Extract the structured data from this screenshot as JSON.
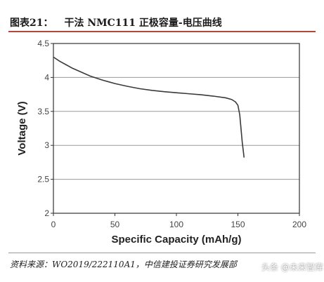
{
  "figure": {
    "label": "图表21：",
    "title": "干法 NMC111 正极容量-电压曲线",
    "source": "资料来源：WO2019/222110A1，中信建投证券研究发展部",
    "watermark": "头条 @未来智库"
  },
  "chart_data": {
    "type": "line",
    "xlabel": "Specific Capacity (mAh/g)",
    "ylabel": "Voltage (V)",
    "xlim": [
      0,
      200
    ],
    "ylim": [
      2,
      4.5
    ],
    "xticks": [
      0,
      50,
      100,
      150,
      200
    ],
    "yticks": [
      2,
      2.5,
      3,
      3.5,
      4,
      4.5
    ],
    "xtick_labels": [
      "0",
      "50",
      "100",
      "150",
      "200"
    ],
    "ytick_labels": [
      "2",
      "2.5",
      "3",
      "3.5",
      "4",
      "4.5"
    ],
    "grid": "horizontal",
    "legend": "none",
    "series": [
      {
        "color": "#3a3a3a",
        "points": [
          [
            0,
            4.3
          ],
          [
            5,
            4.24
          ],
          [
            10,
            4.19
          ],
          [
            15,
            4.14
          ],
          [
            20,
            4.1
          ],
          [
            25,
            4.06
          ],
          [
            30,
            4.02
          ],
          [
            35,
            3.99
          ],
          [
            40,
            3.96
          ],
          [
            45,
            3.935
          ],
          [
            50,
            3.91
          ],
          [
            60,
            3.87
          ],
          [
            70,
            3.835
          ],
          [
            80,
            3.81
          ],
          [
            90,
            3.79
          ],
          [
            100,
            3.775
          ],
          [
            110,
            3.76
          ],
          [
            120,
            3.745
          ],
          [
            130,
            3.725
          ],
          [
            140,
            3.7
          ],
          [
            145,
            3.675
          ],
          [
            148,
            3.64
          ],
          [
            150,
            3.59
          ],
          [
            151.5,
            3.45
          ],
          [
            152.5,
            3.25
          ],
          [
            153.5,
            3.05
          ],
          [
            154.5,
            2.9
          ],
          [
            155,
            2.82
          ]
        ]
      }
    ]
  }
}
